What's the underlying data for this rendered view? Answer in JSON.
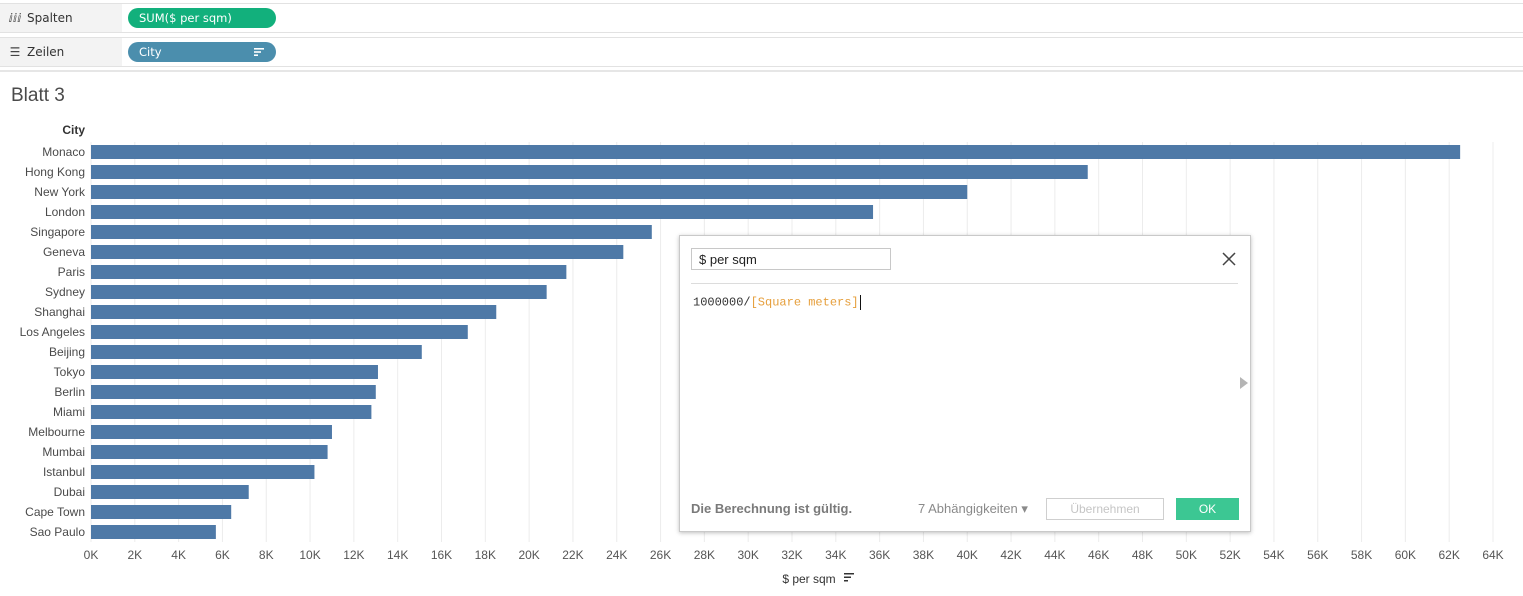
{
  "shelves": {
    "columns": {
      "label": "Spalten",
      "icon": "columns-icon",
      "pill": "SUM($ per sqm)",
      "pill_color": "#12b07c"
    },
    "rows": {
      "label": "Zeilen",
      "icon": "rows-icon",
      "pill": "City",
      "pill_color": "#4b8ead"
    }
  },
  "sheet": {
    "title": "Blatt 3"
  },
  "chart_data": {
    "type": "bar",
    "orientation": "horizontal",
    "category_header": "City",
    "categories": [
      "Monaco",
      "Hong Kong",
      "New York",
      "London",
      "Singapore",
      "Geneva",
      "Paris",
      "Sydney",
      "Shanghai",
      "Los Angeles",
      "Beijing",
      "Tokyo",
      "Berlin",
      "Miami",
      "Melbourne",
      "Mumbai",
      "Istanbul",
      "Dubai",
      "Cape Town",
      "Sao Paulo"
    ],
    "values": [
      62500,
      45500,
      40000,
      35700,
      25600,
      24300,
      21700,
      20800,
      18500,
      17200,
      15100,
      13100,
      13000,
      12800,
      11000,
      10800,
      10200,
      7200,
      6400,
      5700
    ],
    "xlabel": "$ per sqm",
    "xlim": [
      0,
      64000
    ],
    "xticks": [
      "0K",
      "2K",
      "4K",
      "6K",
      "8K",
      "10K",
      "12K",
      "14K",
      "16K",
      "18K",
      "20K",
      "22K",
      "24K",
      "26K",
      "28K",
      "30K",
      "32K",
      "34K",
      "36K",
      "38K",
      "40K",
      "42K",
      "44K",
      "46K",
      "48K",
      "50K",
      "52K",
      "54K",
      "56K",
      "58K",
      "60K",
      "62K",
      "64K"
    ],
    "bar_color": "#4e79a7",
    "grid": true
  },
  "dialog": {
    "field_name": "$ per sqm",
    "formula_prefix": "1000000/",
    "formula_field": "[Square meters]",
    "status": "Die Berechnung ist gültig.",
    "dependencies": "7 Abhängigkeiten ▾",
    "apply_label": "Übernehmen",
    "ok_label": "OK"
  }
}
